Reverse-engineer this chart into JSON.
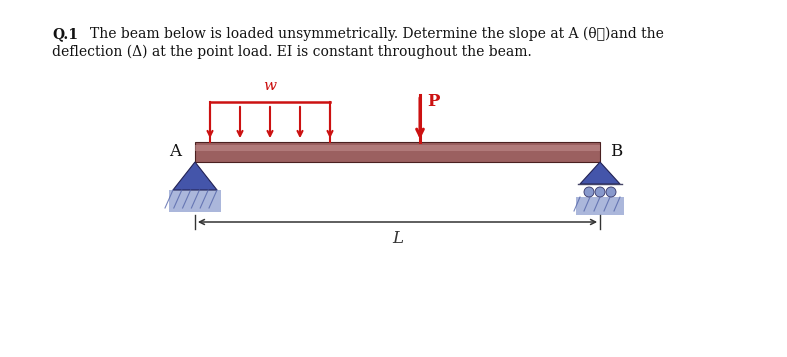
{
  "background_color": "#ffffff",
  "title_bold": "Q.1",
  "title_line1": "The beam below is loaded unsymmetrically. Determine the slope at A (θ⁁)and the",
  "title_line2": "deflection (Δ) at the point load. EI is constant throughout the beam.",
  "beam_color": "#9b6060",
  "beam_stripe_color": "#c49090",
  "beam_edge_color": "#4a2020",
  "udl_color": "#cc1111",
  "point_load_color": "#cc1111",
  "support_A_color": "#4455aa",
  "support_B_color": "#4455aa",
  "support_ground_color": "#8899cc",
  "dim_line_color": "#333333",
  "label_color": "#111111",
  "udl_label": "w",
  "point_load_label": "P",
  "label_A": "A",
  "label_B": "B",
  "dim_label": "L",
  "n_udl_arrows": 5
}
